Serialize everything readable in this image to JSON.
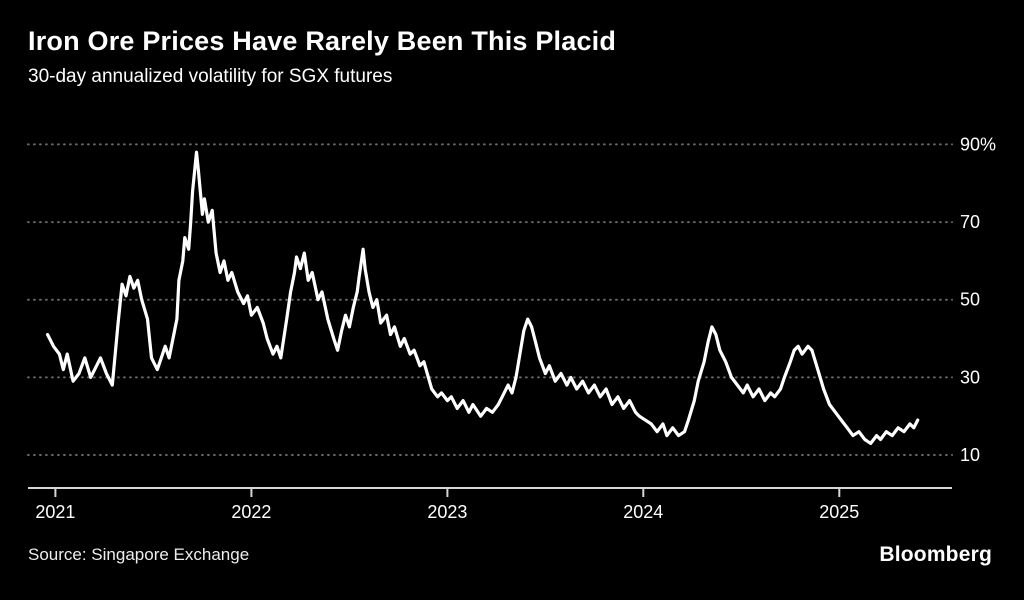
{
  "header": {
    "title": "Iron Ore Prices Have Rarely Been This Placid",
    "subtitle": "30-day annualized volatility for SGX futures"
  },
  "footer": {
    "source": "Source: Singapore Exchange",
    "brand": "Bloomberg"
  },
  "colors": {
    "background": "#000000",
    "line": "#ffffff",
    "gridline": "#6a6a6a",
    "axis": "#d6d6d6",
    "text": "#ffffff"
  },
  "chart_data": {
    "type": "line",
    "title": "Iron Ore Prices Have Rarely Been This Placid",
    "subtitle": "30-day annualized volatility for SGX futures",
    "legend": "none",
    "grid": "dotted-horizontal",
    "y_axis": {
      "side": "right",
      "ticks": [
        10,
        30,
        50,
        70,
        90
      ],
      "tick_labels": [
        "10",
        "30",
        "50",
        "70",
        "90%"
      ],
      "range": [
        1.5,
        95
      ]
    },
    "x_axis": {
      "ticks": [
        2021,
        2022,
        2023,
        2024,
        2025
      ],
      "tick_labels": [
        "2021",
        "2022",
        "2023",
        "2024",
        "2025"
      ],
      "range": [
        2020.86,
        2025.575
      ]
    },
    "series": [
      {
        "name": "30-day annualized volatility (%)",
        "color": "#ffffff",
        "points": [
          [
            2020.96,
            41
          ],
          [
            2020.99,
            38
          ],
          [
            2021.02,
            36
          ],
          [
            2021.04,
            32
          ],
          [
            2021.06,
            36
          ],
          [
            2021.09,
            29
          ],
          [
            2021.12,
            31
          ],
          [
            2021.15,
            35
          ],
          [
            2021.18,
            30
          ],
          [
            2021.21,
            33
          ],
          [
            2021.23,
            35
          ],
          [
            2021.26,
            31
          ],
          [
            2021.29,
            28
          ],
          [
            2021.32,
            44
          ],
          [
            2021.34,
            54
          ],
          [
            2021.36,
            51
          ],
          [
            2021.38,
            56
          ],
          [
            2021.4,
            53
          ],
          [
            2021.42,
            55
          ],
          [
            2021.44,
            50
          ],
          [
            2021.47,
            45
          ],
          [
            2021.49,
            35
          ],
          [
            2021.52,
            32
          ],
          [
            2021.54,
            35
          ],
          [
            2021.56,
            38
          ],
          [
            2021.58,
            35
          ],
          [
            2021.6,
            40
          ],
          [
            2021.62,
            45
          ],
          [
            2021.63,
            55
          ],
          [
            2021.65,
            60
          ],
          [
            2021.66,
            66
          ],
          [
            2021.68,
            63
          ],
          [
            2021.69,
            70
          ],
          [
            2021.7,
            78
          ],
          [
            2021.72,
            88
          ],
          [
            2021.73,
            83
          ],
          [
            2021.75,
            72
          ],
          [
            2021.76,
            76
          ],
          [
            2021.78,
            70
          ],
          [
            2021.8,
            73
          ],
          [
            2021.82,
            62
          ],
          [
            2021.84,
            57
          ],
          [
            2021.86,
            60
          ],
          [
            2021.88,
            55
          ],
          [
            2021.9,
            57
          ],
          [
            2021.93,
            52
          ],
          [
            2021.96,
            49
          ],
          [
            2021.98,
            51
          ],
          [
            2022.0,
            46
          ],
          [
            2022.03,
            48
          ],
          [
            2022.06,
            44
          ],
          [
            2022.08,
            40
          ],
          [
            2022.11,
            36
          ],
          [
            2022.13,
            38
          ],
          [
            2022.15,
            35
          ],
          [
            2022.18,
            45
          ],
          [
            2022.2,
            52
          ],
          [
            2022.22,
            57
          ],
          [
            2022.23,
            61
          ],
          [
            2022.25,
            58
          ],
          [
            2022.27,
            62
          ],
          [
            2022.29,
            55
          ],
          [
            2022.31,
            57
          ],
          [
            2022.34,
            50
          ],
          [
            2022.36,
            52
          ],
          [
            2022.39,
            45
          ],
          [
            2022.42,
            40
          ],
          [
            2022.44,
            37
          ],
          [
            2022.46,
            42
          ],
          [
            2022.48,
            46
          ],
          [
            2022.5,
            43
          ],
          [
            2022.52,
            48
          ],
          [
            2022.54,
            52
          ],
          [
            2022.55,
            56
          ],
          [
            2022.57,
            63
          ],
          [
            2022.58,
            58
          ],
          [
            2022.6,
            52
          ],
          [
            2022.62,
            48
          ],
          [
            2022.64,
            50
          ],
          [
            2022.66,
            44
          ],
          [
            2022.69,
            46
          ],
          [
            2022.71,
            41
          ],
          [
            2022.73,
            43
          ],
          [
            2022.76,
            38
          ],
          [
            2022.78,
            40
          ],
          [
            2022.81,
            36
          ],
          [
            2022.83,
            37
          ],
          [
            2022.86,
            33
          ],
          [
            2022.88,
            34
          ],
          [
            2022.92,
            27
          ],
          [
            2022.95,
            25
          ],
          [
            2022.97,
            26
          ],
          [
            2023.0,
            24
          ],
          [
            2023.02,
            25
          ],
          [
            2023.05,
            22
          ],
          [
            2023.08,
            24
          ],
          [
            2023.11,
            21
          ],
          [
            2023.13,
            23
          ],
          [
            2023.17,
            20
          ],
          [
            2023.2,
            22
          ],
          [
            2023.23,
            21
          ],
          [
            2023.26,
            23
          ],
          [
            2023.28,
            25
          ],
          [
            2023.31,
            28
          ],
          [
            2023.33,
            26
          ],
          [
            2023.35,
            30
          ],
          [
            2023.37,
            36
          ],
          [
            2023.39,
            42
          ],
          [
            2023.41,
            45
          ],
          [
            2023.43,
            43
          ],
          [
            2023.45,
            39
          ],
          [
            2023.47,
            35
          ],
          [
            2023.5,
            31
          ],
          [
            2023.52,
            33
          ],
          [
            2023.55,
            29
          ],
          [
            2023.58,
            31
          ],
          [
            2023.61,
            28
          ],
          [
            2023.63,
            30
          ],
          [
            2023.66,
            27
          ],
          [
            2023.69,
            29
          ],
          [
            2023.72,
            26
          ],
          [
            2023.75,
            28
          ],
          [
            2023.78,
            25
          ],
          [
            2023.81,
            27
          ],
          [
            2023.84,
            23
          ],
          [
            2023.87,
            25
          ],
          [
            2023.9,
            22
          ],
          [
            2023.93,
            24
          ],
          [
            2023.96,
            21
          ],
          [
            2023.98,
            20
          ],
          [
            2024.01,
            19
          ],
          [
            2024.04,
            18
          ],
          [
            2024.07,
            16
          ],
          [
            2024.1,
            18
          ],
          [
            2024.12,
            15
          ],
          [
            2024.15,
            17
          ],
          [
            2024.18,
            15
          ],
          [
            2024.21,
            16
          ],
          [
            2024.23,
            19
          ],
          [
            2024.26,
            24
          ],
          [
            2024.28,
            29
          ],
          [
            2024.31,
            34
          ],
          [
            2024.33,
            39
          ],
          [
            2024.35,
            43
          ],
          [
            2024.37,
            41
          ],
          [
            2024.39,
            37
          ],
          [
            2024.42,
            34
          ],
          [
            2024.45,
            30
          ],
          [
            2024.48,
            28
          ],
          [
            2024.51,
            26
          ],
          [
            2024.53,
            28
          ],
          [
            2024.56,
            25
          ],
          [
            2024.59,
            27
          ],
          [
            2024.62,
            24
          ],
          [
            2024.65,
            26
          ],
          [
            2024.67,
            25
          ],
          [
            2024.7,
            27
          ],
          [
            2024.72,
            30
          ],
          [
            2024.75,
            34
          ],
          [
            2024.77,
            37
          ],
          [
            2024.79,
            38
          ],
          [
            2024.81,
            36
          ],
          [
            2024.84,
            38
          ],
          [
            2024.86,
            37
          ],
          [
            2024.89,
            32
          ],
          [
            2024.92,
            27
          ],
          [
            2024.95,
            23
          ],
          [
            2024.98,
            21
          ],
          [
            2025.01,
            19
          ],
          [
            2025.04,
            17
          ],
          [
            2025.07,
            15
          ],
          [
            2025.1,
            16
          ],
          [
            2025.13,
            14
          ],
          [
            2025.16,
            13
          ],
          [
            2025.19,
            15
          ],
          [
            2025.21,
            14
          ],
          [
            2025.24,
            16
          ],
          [
            2025.27,
            15
          ],
          [
            2025.3,
            17
          ],
          [
            2025.33,
            16
          ],
          [
            2025.36,
            18
          ],
          [
            2025.38,
            17
          ],
          [
            2025.4,
            19
          ]
        ]
      }
    ]
  }
}
